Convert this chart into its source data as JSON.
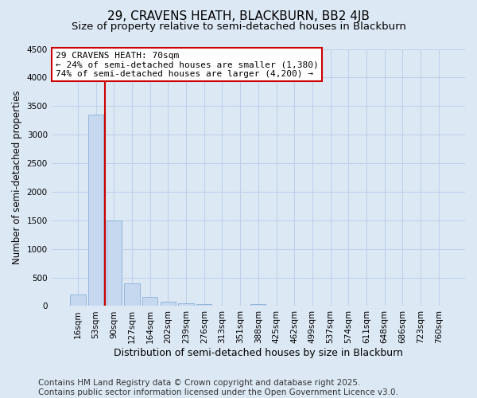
{
  "title1": "29, CRAVENS HEATH, BLACKBURN, BB2 4JB",
  "title2": "Size of property relative to semi-detached houses in Blackburn",
  "xlabel": "Distribution of semi-detached houses by size in Blackburn",
  "ylabel": "Number of semi-detached properties",
  "categories": [
    "16sqm",
    "53sqm",
    "90sqm",
    "127sqm",
    "164sqm",
    "202sqm",
    "239sqm",
    "276sqm",
    "313sqm",
    "351sqm",
    "388sqm",
    "425sqm",
    "462sqm",
    "499sqm",
    "537sqm",
    "574sqm",
    "611sqm",
    "648sqm",
    "686sqm",
    "723sqm",
    "760sqm"
  ],
  "values": [
    200,
    3350,
    1500,
    390,
    160,
    75,
    50,
    30,
    0,
    0,
    30,
    0,
    0,
    0,
    0,
    0,
    0,
    0,
    0,
    0,
    0
  ],
  "bar_color": "#c5d8ef",
  "bar_edge_color": "#8ab0d5",
  "grid_color": "#c0d0e8",
  "background_color": "#dce9f5",
  "property_line_color": "#cc0000",
  "property_line_x": 1.5,
  "ylim": [
    0,
    4500
  ],
  "yticks": [
    0,
    500,
    1000,
    1500,
    2000,
    2500,
    3000,
    3500,
    4000,
    4500
  ],
  "annotation_text": "29 CRAVENS HEATH: 70sqm\n← 24% of semi-detached houses are smaller (1,380)\n74% of semi-detached houses are larger (4,200) →",
  "annotation_box_color": "#ffffff",
  "annotation_box_edge": "#cc0000",
  "footer_text": "Contains HM Land Registry data © Crown copyright and database right 2025.\nContains public sector information licensed under the Open Government Licence v3.0.",
  "footer_fontsize": 7.5,
  "title1_fontsize": 11,
  "title2_fontsize": 9.5,
  "xlabel_fontsize": 9,
  "ylabel_fontsize": 8.5,
  "tick_fontsize": 7.5,
  "annot_fontsize": 8
}
